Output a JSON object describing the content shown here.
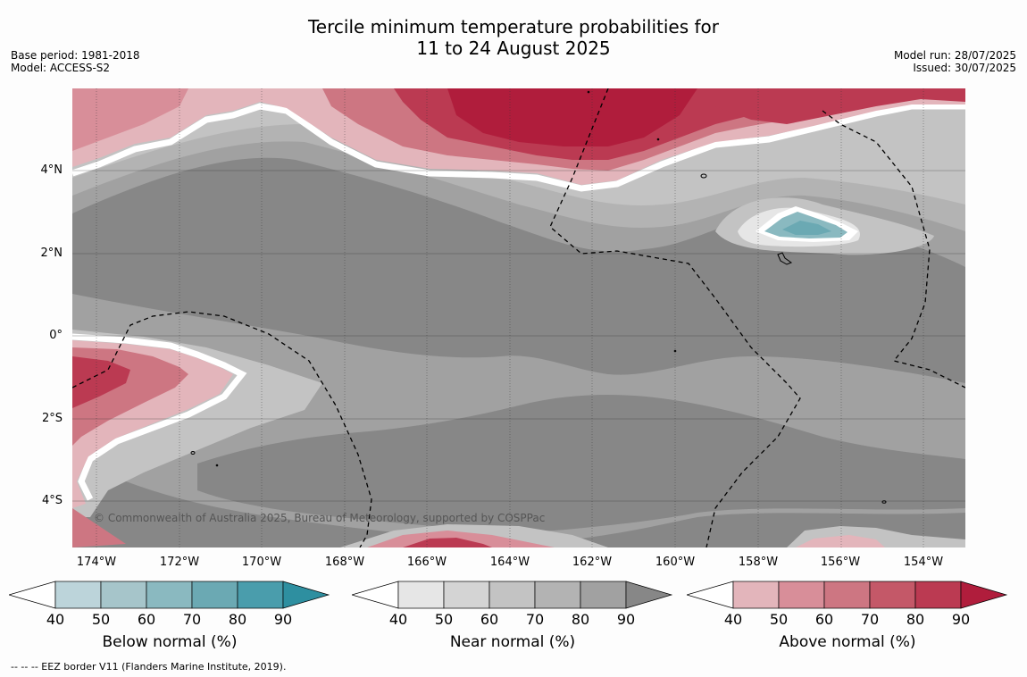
{
  "title": {
    "line1": "Tercile minimum temperature probabilities for",
    "line2": "11 to 24 August 2025"
  },
  "meta": {
    "base_period": "Base period: 1981-2018",
    "model": "Model: ACCESS-S2",
    "model_run": "Model run: 28/07/2025",
    "issued": "Issued: 30/07/2025"
  },
  "map": {
    "lat_labels": [
      "4°N",
      "2°N",
      "0°",
      "2°S",
      "4°S"
    ],
    "lon_labels": [
      "174°W",
      "172°W",
      "170°W",
      "168°W",
      "166°W",
      "164°W",
      "162°W",
      "160°W",
      "158°W",
      "156°W",
      "154°W"
    ],
    "copyright": "© Commonwealth of Australia 2025, Bureau of Meteorology, supported by COSPPac",
    "background_color": "#878787"
  },
  "legend": {
    "below": {
      "label": "Below normal (%)",
      "ticks": [
        "40",
        "50",
        "60",
        "70",
        "80",
        "90"
      ],
      "colors": [
        "#bcd4da",
        "#a6c5ca",
        "#8ab9c0",
        "#6ba9b3",
        "#4a9dac",
        "#2e8fa0"
      ]
    },
    "near": {
      "label": "Near normal (%)",
      "ticks": [
        "40",
        "50",
        "60",
        "70",
        "80",
        "90"
      ],
      "colors": [
        "#e6e6e6",
        "#d4d4d4",
        "#c3c3c3",
        "#b3b3b3",
        "#a1a1a1",
        "#878787"
      ]
    },
    "above": {
      "label": "Above normal (%)",
      "ticks": [
        "40",
        "50",
        "60",
        "70",
        "80",
        "90"
      ],
      "colors": [
        "#e3b5bb",
        "#d88e99",
        "#cd7682",
        "#c45868",
        "#bb3a52",
        "#b01d3c"
      ]
    }
  },
  "footnote": "--  --  -- EEZ border V11 (Flanders Marine Institute, 2019)."
}
